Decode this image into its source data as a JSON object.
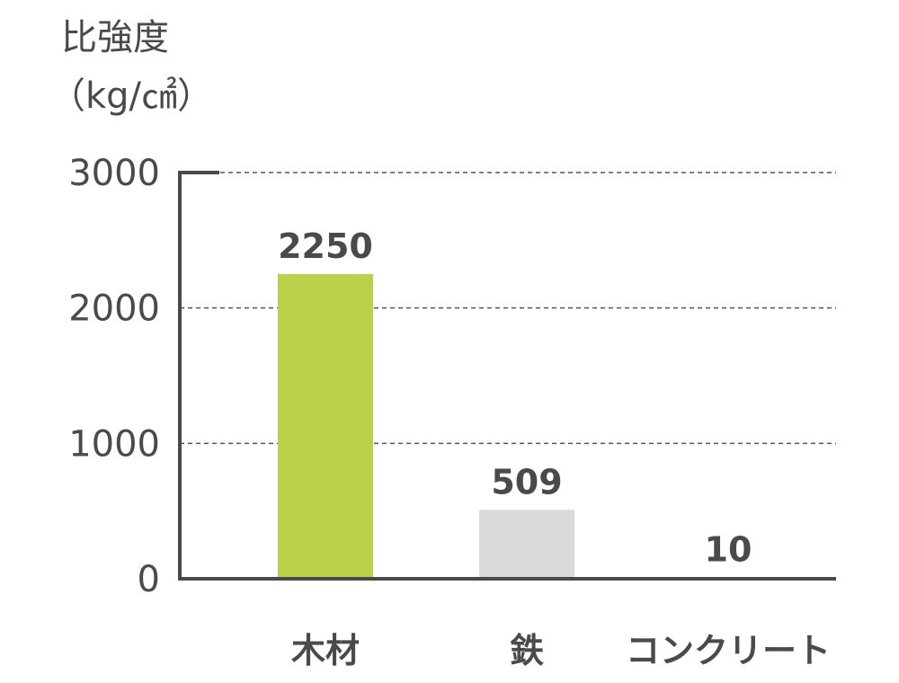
{
  "chart_data": {
    "type": "bar",
    "title": "",
    "ylabel_lines": [
      "比強度",
      "（kg/㎠）"
    ],
    "xlabel": "",
    "categories": [
      "木材",
      "鉄",
      "コンクリート"
    ],
    "values": [
      2250,
      509,
      10
    ],
    "data_labels": [
      "2250",
      "509",
      "10"
    ],
    "ylim": [
      0,
      3000
    ],
    "yticks": [
      0,
      1000,
      2000,
      3000
    ],
    "ytick_labels": [
      "0",
      "1000",
      "2000",
      "3000"
    ],
    "grid": true,
    "bar_colors": [
      "#bdd04a",
      "#dadbd9",
      "#dadbd9"
    ],
    "axis_color": "#4a4a4a",
    "grid_color": "#555555"
  }
}
